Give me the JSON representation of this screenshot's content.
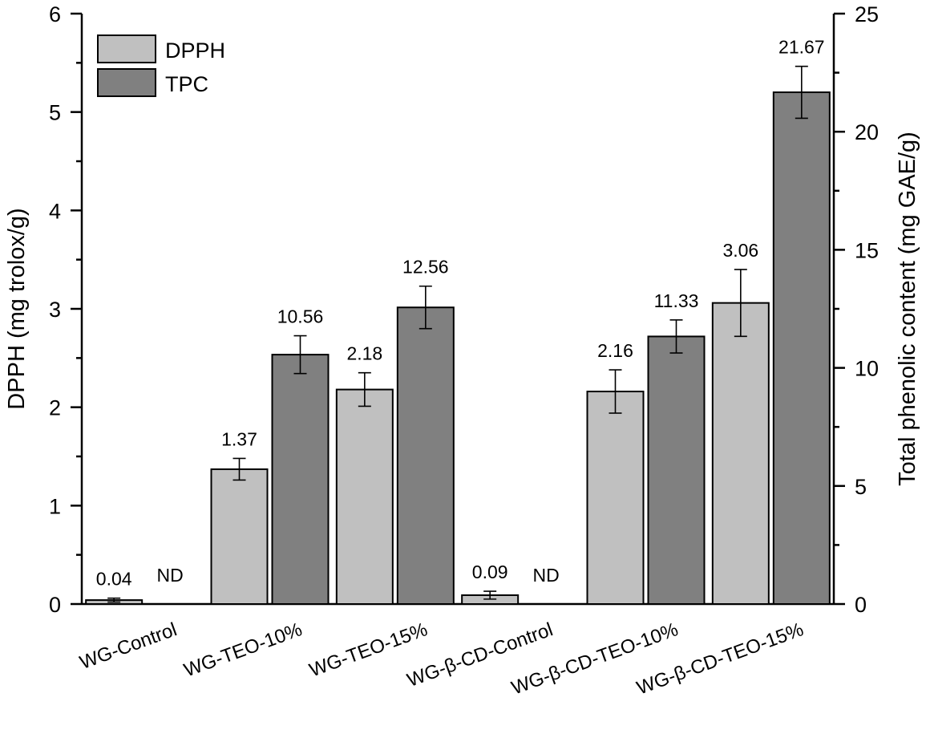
{
  "chart_data": {
    "type": "bar",
    "categories": [
      "WG-Control",
      "WG-TEO-10%",
      "WG-TEO-15%",
      "WG-β-CD-Control",
      "WG-β-CD-TEO-10%",
      "WG-β-CD-TEO-15%"
    ],
    "series": [
      {
        "name": "DPPH",
        "axis": "left",
        "color": "#c0c0c0",
        "values": [
          0.04,
          1.37,
          2.18,
          0.09,
          2.16,
          3.06
        ],
        "errors": [
          0.02,
          0.11,
          0.17,
          0.04,
          0.22,
          0.34
        ],
        "labels": [
          "0.04",
          "1.37",
          "2.18",
          "0.09",
          "2.16",
          "3.06"
        ]
      },
      {
        "name": "TPC",
        "axis": "right",
        "color": "#808080",
        "values": [
          null,
          10.56,
          12.56,
          null,
          11.33,
          21.67
        ],
        "errors": [
          null,
          0.8,
          0.9,
          null,
          0.7,
          1.1
        ],
        "labels": [
          "ND",
          "10.56",
          "12.56",
          "ND",
          "11.33",
          "21.67"
        ]
      }
    ],
    "ylabel": "DPPH (mg trolox/g)",
    "y2label": "Total phenolic content (mg GAE/g)",
    "ylim": [
      0,
      6
    ],
    "y2lim": [
      0,
      25
    ],
    "yticks": [
      "0",
      "1",
      "2",
      "3",
      "4",
      "5",
      "6"
    ],
    "y2ticks": [
      "0",
      "5",
      "10",
      "15",
      "20",
      "25"
    ],
    "legend": [
      "DPPH",
      "TPC"
    ],
    "legend_position": "top-left",
    "grid": false
  }
}
